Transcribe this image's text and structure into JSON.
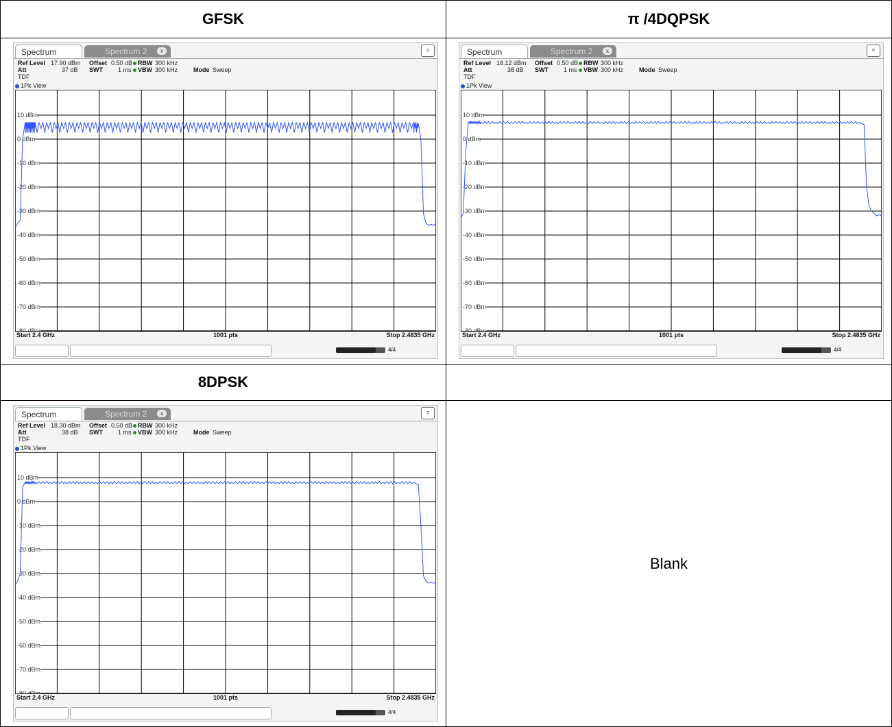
{
  "table": {
    "headers": [
      "GFSK",
      "π /4DQPSK",
      "8DPSK",
      ""
    ],
    "blank_text": "Blank"
  },
  "colors": {
    "trace": "#3355ff",
    "grid": "#000000",
    "plot_bg": "#ffffff",
    "panel_bg": "#f4f4f4"
  },
  "icons": {
    "display_icon": "display-config-icon",
    "tab_close": "close-icon"
  },
  "panels": [
    {
      "tab_active": "Spectrum",
      "tab_inactive": "Spectrum 2",
      "tab_close": "x",
      "ref_level_label": "Ref Level",
      "ref_level_value": "17.90 dBm",
      "offset_label": "Offset",
      "offset_value": "0.50 dB",
      "rbw_label": "RBW",
      "rbw_value": "300 kHz",
      "att_label": "Att",
      "att_value": "37 dB",
      "swt_label": "SWT",
      "swt_value": "1 ms",
      "vbw_label": "VBW",
      "vbw_value": "300 kHz",
      "mode_label": "Mode",
      "mode_value": "Sweep",
      "tdf_label": "TDF",
      "view_label": "1Pk View",
      "start_label": "Start 2.4 GHz",
      "points_label": "1001 pts",
      "stop_label": "Stop 2.4835 GHz",
      "status_text": "4/4",
      "progress_fraction": 0.8
    },
    {
      "tab_active": "Spectrum",
      "tab_inactive": "Spectrum 2",
      "tab_close": "x",
      "ref_level_label": "Ref Level",
      "ref_level_value": "18.12 dBm",
      "offset_label": "Offset",
      "offset_value": "0.50 dB",
      "rbw_label": "RBW",
      "rbw_value": "300 kHz",
      "att_label": "Att",
      "att_value": "38 dB",
      "swt_label": "SWT",
      "swt_value": "1 ms",
      "vbw_label": "VBW",
      "vbw_value": "300 kHz",
      "mode_label": "Mode",
      "mode_value": "Sweep",
      "tdf_label": "TDF",
      "view_label": "1Pk View",
      "start_label": "Start 2.4 GHz",
      "points_label": "1001 pts",
      "stop_label": "Stop 2.4835 GHz",
      "status_text": "4/4",
      "progress_fraction": 0.8
    },
    {
      "tab_active": "Spectrum",
      "tab_inactive": "Spectrum 2",
      "tab_close": "x",
      "ref_level_label": "Ref Level",
      "ref_level_value": "18.30 dBm",
      "offset_label": "Offset",
      "offset_value": "0.50 dB",
      "rbw_label": "RBW",
      "rbw_value": "300 kHz",
      "att_label": "Att",
      "att_value": "38 dB",
      "swt_label": "SWT",
      "swt_value": "1 ms",
      "vbw_label": "VBW",
      "vbw_value": "300 kHz",
      "mode_label": "Mode",
      "mode_value": "Sweep",
      "tdf_label": "TDF",
      "view_label": "1Pk View",
      "start_label": "Start 2.4 GHz",
      "points_label": "1001 pts",
      "stop_label": "Stop 2.4835 GHz",
      "status_text": "4/4",
      "progress_fraction": 0.8
    }
  ],
  "chart_data": [
    {
      "type": "line",
      "title": "GFSK",
      "x_unit": "GHz",
      "xlim": [
        2.4,
        2.4835
      ],
      "ylim": [
        -80,
        20
      ],
      "y_ticks": [
        10,
        0,
        -10,
        -20,
        -30,
        -40,
        -50,
        -60,
        -70,
        -80
      ],
      "y_tick_labels": [
        "10 dBm",
        "0 dBm",
        "-10 dBm",
        "-20 dBm",
        "-30 dBm",
        "-40 dBm",
        "-50 dBm",
        "-60 dBm",
        "-70 dBm",
        "-80 dBm"
      ],
      "grid": true,
      "series": [
        {
          "x": [
            2.4,
            2.4005,
            2.401,
            2.4015,
            2.402,
            2.4025,
            2.403,
            2.4035,
            2.404,
            2.407,
            2.41,
            2.413,
            2.416,
            2.419,
            2.422,
            2.425,
            2.428,
            2.431,
            2.434,
            2.437,
            2.44,
            2.443,
            2.446,
            2.449,
            2.452,
            2.455,
            2.458,
            2.461,
            2.464,
            2.467,
            2.47,
            2.473,
            2.476,
            2.479,
            2.48,
            2.4805,
            2.481,
            2.4815,
            2.482,
            2.4825,
            2.483,
            2.4835
          ],
          "y": [
            -37,
            -35,
            -34,
            0,
            7,
            7,
            7,
            7,
            7,
            7,
            7,
            7,
            7,
            7,
            7,
            7,
            7,
            7,
            7,
            7,
            7,
            7,
            7,
            7,
            7,
            7,
            7,
            7,
            7,
            7,
            7,
            7,
            7,
            7,
            6.5,
            0,
            -31,
            -35,
            -36,
            -35.5,
            -36,
            -35
          ]
        }
      ]
    },
    {
      "type": "line",
      "title": "π /4DQPSK",
      "x_unit": "GHz",
      "xlim": [
        2.4,
        2.4835
      ],
      "ylim": [
        -80,
        20
      ],
      "y_ticks": [
        10,
        0,
        -10,
        -20,
        -30,
        -40,
        -50,
        -60,
        -70,
        -80
      ],
      "y_tick_labels": [
        "10 dBm",
        "0 dBm",
        "-10 dBm",
        "-20 dBm",
        "-30 dBm",
        "-40 dBm",
        "-50 dBm",
        "-60 dBm",
        "-70 dBm",
        "-80 dBm"
      ],
      "grid": true,
      "series": [
        {
          "x": [
            2.4,
            2.4005,
            2.401,
            2.4015,
            2.402,
            2.4025,
            2.403,
            2.404,
            2.407,
            2.41,
            2.413,
            2.416,
            2.419,
            2.422,
            2.425,
            2.428,
            2.431,
            2.434,
            2.437,
            2.44,
            2.443,
            2.446,
            2.449,
            2.452,
            2.455,
            2.458,
            2.461,
            2.464,
            2.467,
            2.47,
            2.473,
            2.476,
            2.479,
            2.48,
            2.4805,
            2.481,
            2.4815,
            2.482,
            2.4825,
            2.483,
            2.4835
          ],
          "y": [
            -33,
            -31,
            -5,
            7,
            7,
            7,
            7,
            7,
            7,
            7,
            7,
            7,
            7,
            7,
            7,
            7,
            7,
            7,
            7,
            7,
            7,
            7,
            7,
            7,
            7,
            7,
            7,
            7,
            7,
            7,
            7,
            7,
            7,
            6,
            -20,
            -28,
            -30,
            -31,
            -32,
            -31.5,
            -32
          ]
        }
      ]
    },
    {
      "type": "line",
      "title": "8DPSK",
      "x_unit": "GHz",
      "xlim": [
        2.4,
        2.4835
      ],
      "ylim": [
        -80,
        20
      ],
      "y_ticks": [
        10,
        0,
        -10,
        -20,
        -30,
        -40,
        -50,
        -60,
        -70,
        -80
      ],
      "y_tick_labels": [
        "10 dBm",
        "0 dBm",
        "-10 dBm",
        "-20 dBm",
        "-30 dBm",
        "-40 dBm",
        "-50 dBm",
        "-60 dBm",
        "-70 dBm",
        "-80 dBm"
      ],
      "grid": true,
      "series": [
        {
          "x": [
            2.4,
            2.4005,
            2.401,
            2.4015,
            2.402,
            2.4025,
            2.403,
            2.404,
            2.407,
            2.41,
            2.413,
            2.416,
            2.419,
            2.422,
            2.425,
            2.428,
            2.431,
            2.434,
            2.437,
            2.44,
            2.443,
            2.446,
            2.449,
            2.452,
            2.455,
            2.458,
            2.461,
            2.464,
            2.467,
            2.47,
            2.473,
            2.476,
            2.479,
            2.48,
            2.4805,
            2.481,
            2.4815,
            2.482,
            2.4825,
            2.483,
            2.4835
          ],
          "y": [
            -35,
            -33,
            -30,
            6,
            8,
            8,
            8,
            8,
            8,
            8,
            8,
            8,
            8,
            8,
            8,
            8,
            8,
            8,
            8,
            8,
            8,
            8,
            8,
            8,
            8,
            8,
            8,
            8,
            8,
            8,
            8,
            8,
            8,
            7,
            -10,
            -31,
            -33,
            -34,
            -33.5,
            -34,
            -34
          ]
        }
      ]
    }
  ]
}
